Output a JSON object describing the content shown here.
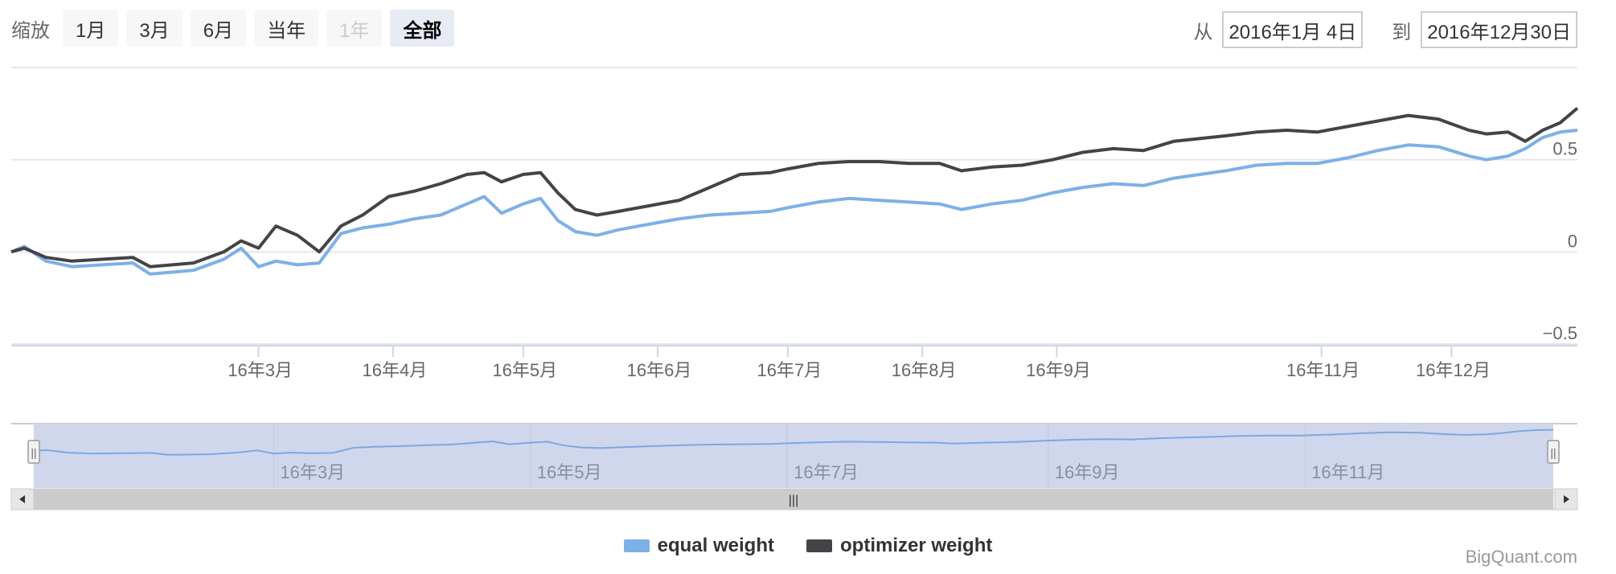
{
  "toolbar": {
    "zoom_label": "缩放",
    "buttons": [
      {
        "label": "1月",
        "state": "normal"
      },
      {
        "label": "3月",
        "state": "normal"
      },
      {
        "label": "6月",
        "state": "normal"
      },
      {
        "label": "当年",
        "state": "normal"
      },
      {
        "label": "1年",
        "state": "disabled"
      },
      {
        "label": "全部",
        "state": "active"
      }
    ],
    "from_label": "从",
    "from_value": "2016年1月 4日",
    "to_label": "到",
    "to_value": "2016年12月30日"
  },
  "credits": "BigQuant.com",
  "navigator": {
    "labels": [
      "16年3月",
      "16年5月",
      "16年7月",
      "16年9月",
      "16年11月"
    ],
    "scroll_thumb_glyph": "|||",
    "handle_glyph": "||",
    "fill_color": "#d0d7ec",
    "line_color": "#7ea7de"
  },
  "chart_data": {
    "type": "line",
    "x_range": [
      "2016-01-04",
      "2016-12-30"
    ],
    "ylim": [
      -0.5,
      1.0
    ],
    "y_ticks": [
      -0.5,
      0,
      0.5
    ],
    "y_tick_labels": [
      "−0.5",
      "0",
      "0.5"
    ],
    "x_ticks": [
      {
        "date": "2016-03-01",
        "label": "16年3月"
      },
      {
        "date": "2016-04-01",
        "label": "16年4月"
      },
      {
        "date": "2016-05-01",
        "label": "16年5月"
      },
      {
        "date": "2016-06-01",
        "label": "16年6月"
      },
      {
        "date": "2016-07-01",
        "label": "16年7月"
      },
      {
        "date": "2016-08-01",
        "label": "16年8月"
      },
      {
        "date": "2016-09-01",
        "label": "16年9月"
      },
      {
        "date": "2016-11-01",
        "label": "16年11月"
      },
      {
        "date": "2016-12-01",
        "label": "16年12月"
      }
    ],
    "grid": true,
    "legend_position": "bottom-center",
    "series": [
      {
        "name": "equal weight",
        "color": "#7cb0e8",
        "points": [
          [
            "2016-01-04",
            0.0
          ],
          [
            "2016-01-07",
            0.03
          ],
          [
            "2016-01-12",
            -0.05
          ],
          [
            "2016-01-18",
            -0.08
          ],
          [
            "2016-01-25",
            -0.07
          ],
          [
            "2016-02-01",
            -0.06
          ],
          [
            "2016-02-05",
            -0.12
          ],
          [
            "2016-02-15",
            -0.1
          ],
          [
            "2016-02-22",
            -0.04
          ],
          [
            "2016-02-26",
            0.02
          ],
          [
            "2016-03-01",
            -0.08
          ],
          [
            "2016-03-05",
            -0.05
          ],
          [
            "2016-03-10",
            -0.07
          ],
          [
            "2016-03-15",
            -0.06
          ],
          [
            "2016-03-20",
            0.1
          ],
          [
            "2016-03-25",
            0.13
          ],
          [
            "2016-03-31",
            0.15
          ],
          [
            "2016-04-06",
            0.18
          ],
          [
            "2016-04-12",
            0.2
          ],
          [
            "2016-04-18",
            0.26
          ],
          [
            "2016-04-22",
            0.3
          ],
          [
            "2016-04-26",
            0.21
          ],
          [
            "2016-05-01",
            0.26
          ],
          [
            "2016-05-05",
            0.29
          ],
          [
            "2016-05-09",
            0.17
          ],
          [
            "2016-05-13",
            0.11
          ],
          [
            "2016-05-18",
            0.09
          ],
          [
            "2016-05-23",
            0.12
          ],
          [
            "2016-05-30",
            0.15
          ],
          [
            "2016-06-06",
            0.18
          ],
          [
            "2016-06-13",
            0.2
          ],
          [
            "2016-06-20",
            0.21
          ],
          [
            "2016-06-27",
            0.22
          ],
          [
            "2016-07-01",
            0.24
          ],
          [
            "2016-07-08",
            0.27
          ],
          [
            "2016-07-15",
            0.29
          ],
          [
            "2016-07-22",
            0.28
          ],
          [
            "2016-07-29",
            0.27
          ],
          [
            "2016-08-05",
            0.26
          ],
          [
            "2016-08-10",
            0.23
          ],
          [
            "2016-08-17",
            0.26
          ],
          [
            "2016-08-24",
            0.28
          ],
          [
            "2016-08-31",
            0.32
          ],
          [
            "2016-09-07",
            0.35
          ],
          [
            "2016-09-14",
            0.37
          ],
          [
            "2016-09-21",
            0.36
          ],
          [
            "2016-09-28",
            0.4
          ],
          [
            "2016-10-10",
            0.44
          ],
          [
            "2016-10-17",
            0.47
          ],
          [
            "2016-10-24",
            0.48
          ],
          [
            "2016-10-31",
            0.48
          ],
          [
            "2016-11-07",
            0.51
          ],
          [
            "2016-11-14",
            0.55
          ],
          [
            "2016-11-21",
            0.58
          ],
          [
            "2016-11-28",
            0.57
          ],
          [
            "2016-12-05",
            0.52
          ],
          [
            "2016-12-09",
            0.5
          ],
          [
            "2016-12-14",
            0.52
          ],
          [
            "2016-12-18",
            0.56
          ],
          [
            "2016-12-22",
            0.62
          ],
          [
            "2016-12-26",
            0.65
          ],
          [
            "2016-12-30",
            0.66
          ]
        ]
      },
      {
        "name": "optimizer weight",
        "color": "#434348",
        "points": [
          [
            "2016-01-04",
            0.0
          ],
          [
            "2016-01-07",
            0.02
          ],
          [
            "2016-01-12",
            -0.03
          ],
          [
            "2016-01-18",
            -0.05
          ],
          [
            "2016-01-25",
            -0.04
          ],
          [
            "2016-02-01",
            -0.03
          ],
          [
            "2016-02-05",
            -0.08
          ],
          [
            "2016-02-15",
            -0.06
          ],
          [
            "2016-02-22",
            0.0
          ],
          [
            "2016-02-26",
            0.06
          ],
          [
            "2016-03-01",
            0.02
          ],
          [
            "2016-03-05",
            0.14
          ],
          [
            "2016-03-10",
            0.09
          ],
          [
            "2016-03-15",
            0.0
          ],
          [
            "2016-03-20",
            0.14
          ],
          [
            "2016-03-25",
            0.2
          ],
          [
            "2016-03-31",
            0.3
          ],
          [
            "2016-04-06",
            0.33
          ],
          [
            "2016-04-12",
            0.37
          ],
          [
            "2016-04-18",
            0.42
          ],
          [
            "2016-04-22",
            0.43
          ],
          [
            "2016-04-26",
            0.38
          ],
          [
            "2016-05-01",
            0.42
          ],
          [
            "2016-05-05",
            0.43
          ],
          [
            "2016-05-09",
            0.32
          ],
          [
            "2016-05-13",
            0.23
          ],
          [
            "2016-05-18",
            0.2
          ],
          [
            "2016-05-23",
            0.22
          ],
          [
            "2016-05-30",
            0.25
          ],
          [
            "2016-06-06",
            0.28
          ],
          [
            "2016-06-13",
            0.35
          ],
          [
            "2016-06-20",
            0.42
          ],
          [
            "2016-06-27",
            0.43
          ],
          [
            "2016-07-01",
            0.45
          ],
          [
            "2016-07-08",
            0.48
          ],
          [
            "2016-07-15",
            0.49
          ],
          [
            "2016-07-22",
            0.49
          ],
          [
            "2016-07-29",
            0.48
          ],
          [
            "2016-08-05",
            0.48
          ],
          [
            "2016-08-10",
            0.44
          ],
          [
            "2016-08-17",
            0.46
          ],
          [
            "2016-08-24",
            0.47
          ],
          [
            "2016-08-31",
            0.5
          ],
          [
            "2016-09-07",
            0.54
          ],
          [
            "2016-09-14",
            0.56
          ],
          [
            "2016-09-21",
            0.55
          ],
          [
            "2016-09-28",
            0.6
          ],
          [
            "2016-10-10",
            0.63
          ],
          [
            "2016-10-17",
            0.65
          ],
          [
            "2016-10-24",
            0.66
          ],
          [
            "2016-10-31",
            0.65
          ],
          [
            "2016-11-07",
            0.68
          ],
          [
            "2016-11-14",
            0.71
          ],
          [
            "2016-11-21",
            0.74
          ],
          [
            "2016-11-28",
            0.72
          ],
          [
            "2016-12-05",
            0.66
          ],
          [
            "2016-12-09",
            0.64
          ],
          [
            "2016-12-14",
            0.65
          ],
          [
            "2016-12-18",
            0.6
          ],
          [
            "2016-12-22",
            0.66
          ],
          [
            "2016-12-26",
            0.7
          ],
          [
            "2016-12-30",
            0.78
          ]
        ]
      }
    ]
  }
}
